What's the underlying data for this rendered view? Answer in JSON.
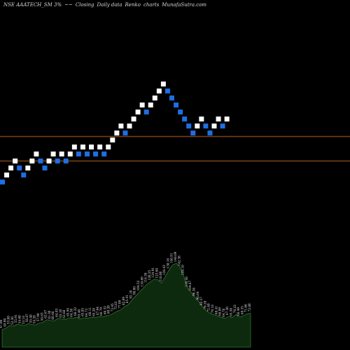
{
  "header": {
    "symbol": "NSE AAATECH_SM 3%",
    "arrows": "~~",
    "price_type": "Closing",
    "frequency": "Daily data",
    "chart_kind": "Renko",
    "word_charts": "charts",
    "site": "MunafaSutra.com"
  },
  "colors": {
    "background": "#000000",
    "up_brick": "#ffffff",
    "down_brick": "#1e6fe6",
    "level_line": "#b5651d",
    "volume_fill": "#0e2a0e",
    "volume_edge": "#3f8f3f",
    "label_text": "#e8e8e8"
  },
  "chart_data": {
    "type": "renko",
    "bricks": [
      {
        "dir": "down",
        "level": 10
      },
      {
        "dir": "up",
        "level": 11
      },
      {
        "dir": "up",
        "level": 12
      },
      {
        "dir": "up",
        "level": 13
      },
      {
        "dir": "down",
        "level": 12
      },
      {
        "dir": "down",
        "level": 11
      },
      {
        "dir": "up",
        "level": 12
      },
      {
        "dir": "up",
        "level": 13
      },
      {
        "dir": "up",
        "level": 14
      },
      {
        "dir": "down",
        "level": 13
      },
      {
        "dir": "down",
        "level": 12
      },
      {
        "dir": "up",
        "level": 13
      },
      {
        "dir": "up",
        "level": 14
      },
      {
        "dir": "down",
        "level": 13
      },
      {
        "dir": "up",
        "level": 14
      },
      {
        "dir": "down",
        "level": 13
      },
      {
        "dir": "up",
        "level": 14
      },
      {
        "dir": "up",
        "level": 15
      },
      {
        "dir": "down",
        "level": 14
      },
      {
        "dir": "up",
        "level": 15
      },
      {
        "dir": "down",
        "level": 14
      },
      {
        "dir": "up",
        "level": 15
      },
      {
        "dir": "down",
        "level": 14
      },
      {
        "dir": "up",
        "level": 15
      },
      {
        "dir": "down",
        "level": 14
      },
      {
        "dir": "up",
        "level": 15
      },
      {
        "dir": "up",
        "level": 16
      },
      {
        "dir": "up",
        "level": 17
      },
      {
        "dir": "up",
        "level": 18
      },
      {
        "dir": "down",
        "level": 17
      },
      {
        "dir": "up",
        "level": 18
      },
      {
        "dir": "up",
        "level": 19
      },
      {
        "dir": "up",
        "level": 20
      },
      {
        "dir": "up",
        "level": 21
      },
      {
        "dir": "down",
        "level": 20
      },
      {
        "dir": "up",
        "level": 21
      },
      {
        "dir": "up",
        "level": 22
      },
      {
        "dir": "up",
        "level": 23
      },
      {
        "dir": "up",
        "level": 24
      },
      {
        "dir": "down",
        "level": 23
      },
      {
        "dir": "down",
        "level": 22
      },
      {
        "dir": "down",
        "level": 21
      },
      {
        "dir": "down",
        "level": 20
      },
      {
        "dir": "down",
        "level": 19
      },
      {
        "dir": "down",
        "level": 18
      },
      {
        "dir": "down",
        "level": 17
      },
      {
        "dir": "up",
        "level": 18
      },
      {
        "dir": "up",
        "level": 19
      },
      {
        "dir": "down",
        "level": 18
      },
      {
        "dir": "down",
        "level": 17
      },
      {
        "dir": "up",
        "level": 18
      },
      {
        "dir": "up",
        "level": 19
      },
      {
        "dir": "down",
        "level": 18
      },
      {
        "dir": "up",
        "level": 19
      }
    ],
    "reference_levels": [
      16.5,
      13.0
    ],
    "level_range": [
      0,
      34
    ],
    "volume": {
      "values": [
        27,
        29,
        33,
        32,
        35,
        34,
        33,
        36,
        35,
        34,
        37,
        38,
        42,
        41,
        40,
        44,
        43,
        42,
        45,
        44,
        46,
        43,
        45,
        44,
        46,
        45,
        47,
        46,
        48,
        49,
        52,
        55,
        57,
        62,
        65,
        72,
        78,
        84,
        90,
        96,
        100,
        104,
        103,
        98,
        108,
        118,
        126,
        128,
        122,
        108,
        90,
        84,
        76,
        70,
        62,
        56,
        52,
        50,
        48,
        46,
        44,
        47,
        45,
        50,
        46,
        48,
        51,
        52
      ],
      "labels": [
        "47.00",
        "49.90",
        "53.88",
        "52.36",
        "55.91",
        "54.60",
        "53.18",
        "56.87",
        "55.40",
        "54.28",
        "57.90",
        "58.63",
        "62.67",
        "61.30",
        "60.48",
        "64.93",
        "63.10",
        "62.68",
        "65.94",
        "64.38",
        "66.32",
        "63.40",
        "65.85",
        "64.73",
        "66.11",
        "65.28",
        "67.94",
        "66.79",
        "68.32",
        "69.20",
        "72.45",
        "75.63",
        "77.09",
        "82.89",
        "85.41",
        "92.10",
        "98.00",
        "104.52",
        "110.69",
        "116.38",
        "120.25",
        "124.91",
        "123.68",
        "118.00",
        "128.43",
        "138.16",
        "146.91",
        "148.09",
        "142.38",
        "128.10",
        "110.48",
        "104.67",
        "96.38",
        "90.64",
        "82.57",
        "76.20",
        "72.40",
        "70.18",
        "68.41",
        "66.09",
        "64.78",
        "67.30",
        "65.58",
        "70.22",
        "66.49",
        "68.35",
        "71.66",
        "72.80"
      ],
      "range": [
        0,
        140
      ]
    }
  }
}
